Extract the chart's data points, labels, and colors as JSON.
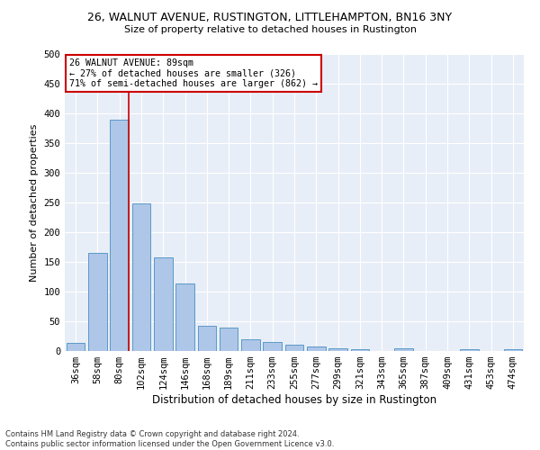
{
  "title1": "26, WALNUT AVENUE, RUSTINGTON, LITTLEHAMPTON, BN16 3NY",
  "title2": "Size of property relative to detached houses in Rustington",
  "xlabel": "Distribution of detached houses by size in Rustington",
  "ylabel": "Number of detached properties",
  "footnote": "Contains HM Land Registry data © Crown copyright and database right 2024.\nContains public sector information licensed under the Open Government Licence v3.0.",
  "bar_labels": [
    "36sqm",
    "58sqm",
    "80sqm",
    "102sqm",
    "124sqm",
    "146sqm",
    "168sqm",
    "189sqm",
    "211sqm",
    "233sqm",
    "255sqm",
    "277sqm",
    "299sqm",
    "321sqm",
    "343sqm",
    "365sqm",
    "387sqm",
    "409sqm",
    "431sqm",
    "453sqm",
    "474sqm"
  ],
  "bar_values": [
    14,
    165,
    390,
    248,
    157,
    113,
    42,
    40,
    19,
    15,
    10,
    7,
    5,
    3,
    0,
    5,
    0,
    0,
    3,
    0,
    3
  ],
  "bar_color": "#aec6e8",
  "bar_edge_color": "#5a9ac8",
  "background_color": "#e8eef7",
  "grid_color": "#ffffff",
  "annotation_text": "26 WALNUT AVENUE: 89sqm\n← 27% of detached houses are smaller (326)\n71% of semi-detached houses are larger (862) →",
  "annotation_box_color": "#ffffff",
  "annotation_box_edge": "#cc0000",
  "vline_color": "#cc0000",
  "vline_x": 2.43,
  "ylim": [
    0,
    500
  ],
  "yticks": [
    0,
    50,
    100,
    150,
    200,
    250,
    300,
    350,
    400,
    450,
    500
  ],
  "title1_fontsize": 9.0,
  "title2_fontsize": 8.0,
  "xlabel_fontsize": 8.5,
  "ylabel_fontsize": 8.0,
  "tick_fontsize": 7.5,
  "footnote_fontsize": 6.0
}
